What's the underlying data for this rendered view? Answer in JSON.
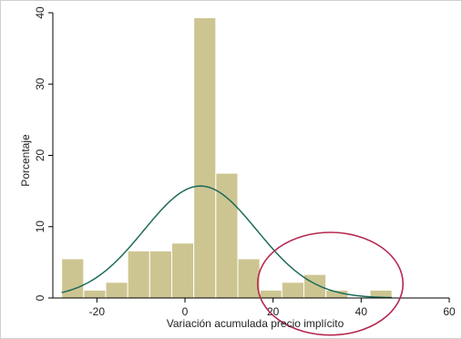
{
  "chart_data": {
    "type": "bar",
    "subtype": "histogram with normal density overlay",
    "xlabel": "Variación acumulada precio implícito",
    "ylabel": "Porcentaje",
    "xlim": [
      -30,
      60
    ],
    "ylim": [
      0,
      40
    ],
    "xticks": [
      -20,
      0,
      20,
      40,
      60
    ],
    "yticks": [
      0,
      10,
      20,
      30,
      40
    ],
    "bin_width": 5,
    "bins": [
      {
        "start": -28,
        "end": -23,
        "value": 5.5
      },
      {
        "start": -23,
        "end": -18,
        "value": 1.1
      },
      {
        "start": -18,
        "end": -13,
        "value": 2.2
      },
      {
        "start": -13,
        "end": -8,
        "value": 6.6
      },
      {
        "start": -8,
        "end": -3,
        "value": 6.6
      },
      {
        "start": -3,
        "end": 2,
        "value": 7.7
      },
      {
        "start": 2,
        "end": 7,
        "value": 39.3
      },
      {
        "start": 7,
        "end": 12,
        "value": 17.5
      },
      {
        "start": 12,
        "end": 17,
        "value": 5.5
      },
      {
        "start": 17,
        "end": 22,
        "value": 1.1
      },
      {
        "start": 22,
        "end": 27,
        "value": 2.2
      },
      {
        "start": 27,
        "end": 32,
        "value": 3.3
      },
      {
        "start": 32,
        "end": 37,
        "value": 1.1
      },
      {
        "start": 37,
        "end": 42,
        "value": 0
      },
      {
        "start": 42,
        "end": 47,
        "value": 1.1
      }
    ],
    "normal_curve": {
      "mean": 3.5,
      "peak": 15.7,
      "sd": 12.8,
      "x_range": [
        -28,
        47
      ]
    },
    "annotation": {
      "shape": "ellipse",
      "center": [
        33,
        2
      ],
      "rx": 16.5,
      "ry": 7.2
    },
    "grid": false,
    "colors": {
      "bar_fill": "#cdc591",
      "bar_stroke": "#ffffff",
      "curve": "#1e6b5c",
      "annotation": "#b5284f",
      "background": "#ffffff"
    }
  }
}
